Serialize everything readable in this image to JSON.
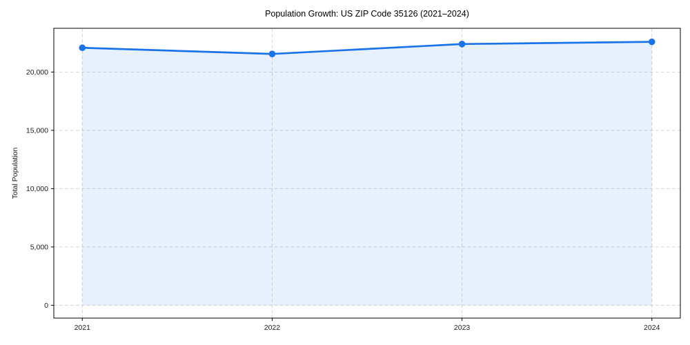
{
  "chart_data": {
    "type": "area",
    "title": "Population Growth: US ZIP Code 35126 (2021–2024)",
    "xlabel": "",
    "ylabel": "Total Population",
    "x": [
      2021,
      2022,
      2023,
      2024
    ],
    "series": [
      {
        "name": "Total Population",
        "values": [
          22080,
          21550,
          22400,
          22590
        ]
      }
    ],
    "x_tick_labels": [
      "2021",
      "2022",
      "2023",
      "2024"
    ],
    "y_ticks": [
      0,
      5000,
      10000,
      15000,
      20000
    ],
    "y_tick_labels": [
      "0",
      "5,000",
      "10,000",
      "15,000",
      "20,000"
    ],
    "xlim": [
      2020.85,
      2024.15
    ],
    "ylim": [
      -1100,
      23750
    ],
    "baseline": 0,
    "grid": true,
    "legend_position": "none",
    "colors": {
      "line": "#1a73e8",
      "fill": "rgba(26, 115, 232, 0.105)",
      "grid": "#d4d4d4",
      "axis": "#000000",
      "text": "#1a1a1a",
      "background": "#ffffff"
    }
  }
}
